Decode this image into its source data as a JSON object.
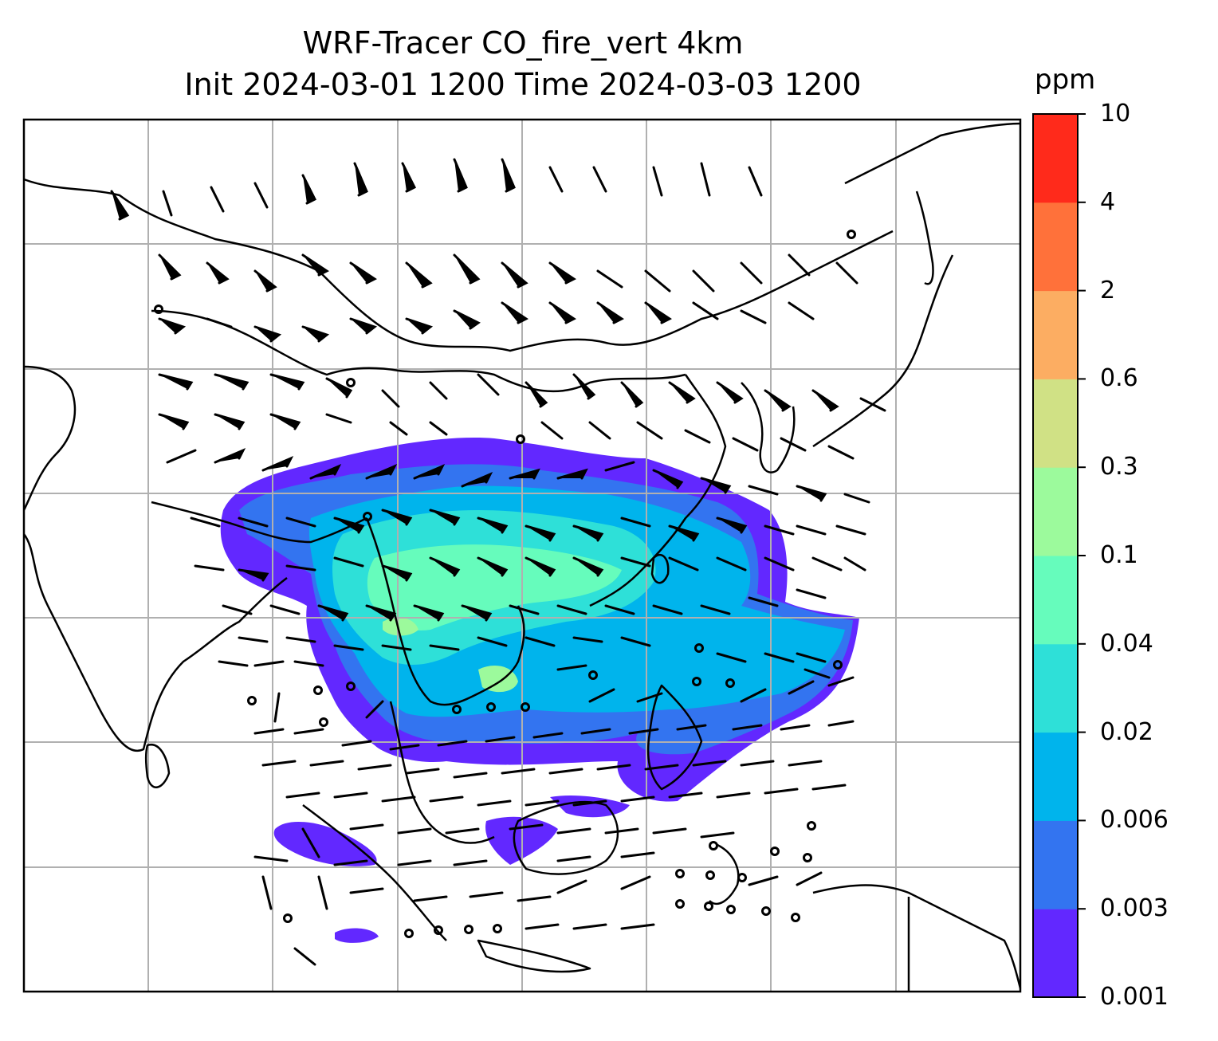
{
  "title": {
    "line1": "WRF-Tracer CO_fire_vert 4km",
    "line2": "Init 2024-03-01 1200 Time 2024-03-03 1200"
  },
  "colorbar": {
    "unit": "ppm",
    "levels": [
      "0.001",
      "0.003",
      "0.006",
      "0.02",
      "0.04",
      "0.1",
      "0.3",
      "0.6",
      "2",
      "4",
      "10"
    ],
    "colors": [
      "#6228ff",
      "#3374f0",
      "#00b4ec",
      "#2ee0d8",
      "#66fcbc",
      "#9cfa9c",
      "#d0e185",
      "#fcad62",
      "#ff713a",
      "#ff2a1b"
    ]
  },
  "map": {
    "grid": true,
    "grid_color": "#b0b0b0",
    "coastline_color": "#000000",
    "wind_barb_color": "#000000",
    "features": [
      "coastlines",
      "country borders",
      "wind barbs",
      "CO tracer shading"
    ]
  }
}
